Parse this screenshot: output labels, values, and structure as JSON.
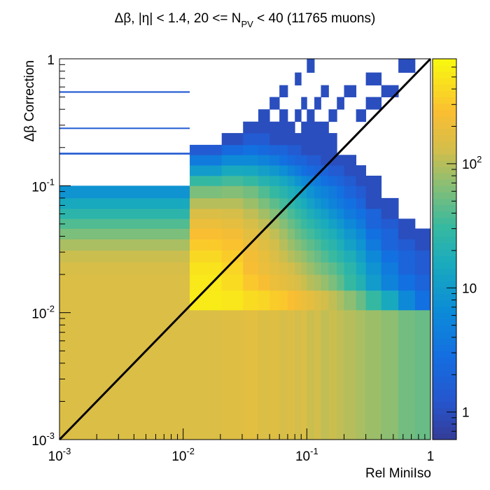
{
  "chart_data": {
    "type": "heatmap",
    "title": "Δβ, |η| < 1.4, 20 <= N_PV < 40 (11765 muons)",
    "title_parts": {
      "main": "Δβ, |η| < 1.4, 20 <= N",
      "sub": "PV",
      "tail": " < 40 (11765 muons)"
    },
    "xlabel": "Rel MiniIso",
    "ylabel": "Δβ Correction",
    "x_scale": "log",
    "y_scale": "log",
    "xlim": [
      0.001,
      1
    ],
    "ylim": [
      0.001,
      1
    ],
    "x_ticks": [
      {
        "value": 0.001,
        "base": "10",
        "exp": "-3"
      },
      {
        "value": 0.01,
        "base": "10",
        "exp": "-2"
      },
      {
        "value": 0.1,
        "base": "10",
        "exp": "-1"
      },
      {
        "value": 1,
        "base": "1",
        "exp": ""
      }
    ],
    "y_ticks": [
      {
        "value": 0.001,
        "base": "10",
        "exp": "-3"
      },
      {
        "value": 0.01,
        "base": "10",
        "exp": "-2"
      },
      {
        "value": 0.1,
        "base": "10",
        "exp": "-1"
      },
      {
        "value": 1,
        "base": "1",
        "exp": ""
      }
    ],
    "colorbar": {
      "scale": "log",
      "range": [
        0.6,
        700
      ],
      "ticks": [
        {
          "value": 1,
          "base": "1",
          "exp": ""
        },
        {
          "value": 10,
          "base": "10",
          "exp": ""
        },
        {
          "value": 100,
          "base": "10",
          "exp": "2"
        }
      ]
    },
    "overlay_line": {
      "x": [
        0.001,
        1
      ],
      "y": [
        0.001,
        1
      ]
    },
    "x_edges": [
      0.001,
      0.0113,
      0.0205,
      0.0305,
      0.0405,
      0.05,
      0.06,
      0.07,
      0.08,
      0.09,
      0.1,
      0.115,
      0.13,
      0.15,
      0.175,
      0.2,
      0.25,
      0.3,
      0.4,
      0.55,
      0.75,
      1.0
    ],
    "y_edges": [
      0.001,
      0.0105,
      0.015,
      0.02,
      0.025,
      0.031,
      0.038,
      0.046,
      0.055,
      0.066,
      0.08,
      0.1,
      0.12,
      0.145,
      0.175,
      0.21,
      0.26,
      0.32,
      0.4,
      0.5,
      0.62,
      0.78,
      1.0
    ],
    "counts": [
      [
        150,
        150,
        160,
        170,
        150,
        160,
        140,
        150,
        130,
        150,
        120,
        130,
        110,
        120,
        110,
        100,
        90,
        80,
        70,
        55,
        50
      ],
      [
        150,
        550,
        500,
        420,
        380,
        330,
        300,
        260,
        230,
        200,
        180,
        150,
        130,
        110,
        90,
        70,
        50,
        30,
        15,
        6,
        3
      ],
      [
        150,
        520,
        420,
        300,
        250,
        200,
        180,
        160,
        140,
        120,
        100,
        90,
        75,
        60,
        45,
        30,
        20,
        10,
        5,
        3,
        2
      ],
      [
        140,
        480,
        380,
        250,
        200,
        170,
        150,
        130,
        110,
        95,
        80,
        65,
        55,
        45,
        35,
        25,
        15,
        8,
        4,
        2,
        1.5
      ],
      [
        120,
        400,
        330,
        230,
        190,
        150,
        120,
        100,
        85,
        75,
        60,
        50,
        40,
        32,
        25,
        18,
        11,
        6,
        3,
        2,
        1.5
      ],
      [
        90,
        320,
        280,
        200,
        160,
        130,
        100,
        80,
        65,
        55,
        45,
        38,
        30,
        24,
        18,
        12,
        8,
        4,
        2,
        1.5,
        1
      ],
      [
        60,
        260,
        230,
        170,
        140,
        110,
        85,
        65,
        50,
        42,
        35,
        28,
        22,
        18,
        13,
        9,
        6,
        3,
        2,
        1,
        1
      ],
      [
        40,
        200,
        180,
        140,
        110,
        85,
        65,
        50,
        40,
        32,
        26,
        20,
        16,
        12,
        9,
        6,
        4,
        2,
        1.5,
        1,
        0
      ],
      [
        25,
        150,
        140,
        110,
        85,
        65,
        50,
        38,
        30,
        24,
        18,
        14,
        11,
        8,
        6,
        4,
        3,
        2,
        1,
        0,
        0
      ],
      [
        15,
        100,
        100,
        80,
        60,
        45,
        35,
        27,
        20,
        16,
        12,
        9,
        7,
        5,
        4,
        3,
        2,
        1,
        1,
        0,
        0
      ],
      [
        8,
        60,
        65,
        55,
        40,
        30,
        23,
        18,
        14,
        11,
        8,
        6,
        5,
        4,
        3,
        2,
        1.5,
        1,
        0,
        0,
        0
      ],
      [
        0,
        30,
        35,
        30,
        22,
        18,
        14,
        11,
        8,
        6,
        5,
        4,
        3,
        2.5,
        2,
        1.5,
        1,
        1,
        0,
        0,
        0
      ],
      [
        0,
        10,
        15,
        14,
        11,
        9,
        7,
        5,
        4,
        3,
        2.5,
        2,
        2,
        1.5,
        1.5,
        1,
        1,
        0,
        0,
        0,
        0
      ],
      [
        0,
        4,
        6,
        6,
        5,
        4,
        3,
        2.5,
        2,
        2,
        1.5,
        1.5,
        1,
        1,
        1,
        1,
        0,
        0,
        0,
        0,
        0
      ],
      [
        0,
        1.5,
        2.5,
        3,
        2.5,
        2,
        2,
        1.5,
        1.5,
        1,
        1,
        1,
        1,
        1,
        0,
        0,
        0,
        0,
        0,
        0,
        0
      ],
      [
        0,
        0,
        1,
        1.5,
        1.5,
        1,
        1,
        1,
        1,
        1,
        1,
        1,
        1,
        1,
        0,
        0,
        0,
        0,
        0,
        0,
        0
      ],
      [
        0,
        0,
        0,
        1,
        1,
        1,
        1,
        1,
        0,
        1,
        1,
        1,
        1,
        0,
        0,
        0,
        0,
        0,
        0,
        0,
        0
      ],
      [
        0,
        0,
        0,
        0,
        1,
        0,
        1,
        0,
        1,
        0,
        1,
        0,
        0,
        1,
        0,
        0,
        1,
        0,
        0,
        0,
        0
      ],
      [
        0,
        0,
        0,
        0,
        0,
        1,
        0,
        0,
        0,
        1,
        0,
        1,
        0,
        0,
        1,
        0,
        0,
        1,
        0,
        0,
        0
      ],
      [
        0,
        0,
        0,
        0,
        0,
        0,
        1,
        0,
        0,
        0,
        0,
        0,
        1,
        0,
        0,
        1,
        0,
        0,
        1,
        0,
        0
      ],
      [
        0,
        0,
        0,
        0,
        0,
        0,
        0,
        0,
        1,
        0,
        0,
        0,
        0,
        0,
        0,
        0,
        0,
        1,
        0,
        0,
        0
      ],
      [
        0,
        0,
        0,
        0,
        0,
        0,
        0,
        0,
        0,
        0,
        1,
        0,
        0,
        0,
        0,
        0,
        0,
        0,
        0,
        1,
        0
      ]
    ],
    "horizontal_strips": [
      {
        "x": [
          0.001,
          0.0113
        ],
        "y": [
          0.54,
          0.555
        ],
        "count": 1.5
      },
      {
        "x": [
          0.001,
          0.0113
        ],
        "y": [
          0.28,
          0.287
        ],
        "count": 1.5
      },
      {
        "x": [
          0.001,
          0.0113
        ],
        "y": [
          0.176,
          0.182
        ],
        "count": 1.5
      }
    ],
    "grid": false,
    "legend": "none"
  }
}
